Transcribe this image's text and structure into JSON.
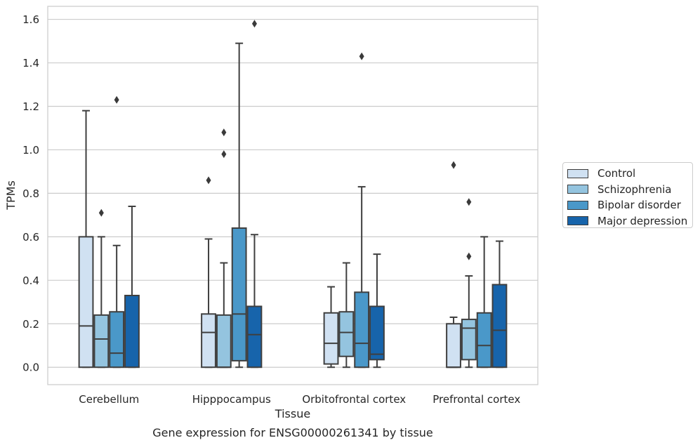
{
  "chart_data": {
    "type": "box",
    "title": "",
    "xlabel": "Tissue",
    "ylabel": "TPMs",
    "caption": "Gene expression for ENSG00000261341 by tissue",
    "categories": [
      "Cerebellum",
      "Hipppocampus",
      "Orbitofrontal cortex",
      "Prefrontal cortex"
    ],
    "ylim": [
      -0.08,
      1.66
    ],
    "yticks": [
      "0.0",
      "0.2",
      "0.4",
      "0.6",
      "0.8",
      "1.0",
      "1.2",
      "1.4",
      "1.6"
    ],
    "grid": "horizontal",
    "legend_position": "right",
    "series": [
      {
        "name": "Control",
        "color": "#d0e1f2",
        "boxes": [
          {
            "q1": 0.0,
            "median": 0.19,
            "q3": 0.6,
            "whisker_low": 0.0,
            "whisker_high": 1.18,
            "outliers": []
          },
          {
            "q1": 0.0,
            "median": 0.16,
            "q3": 0.245,
            "whisker_low": 0.0,
            "whisker_high": 0.59,
            "outliers": [
              0.86
            ]
          },
          {
            "q1": 0.015,
            "median": 0.11,
            "q3": 0.25,
            "whisker_low": 0.0,
            "whisker_high": 0.37,
            "outliers": []
          },
          {
            "q1": 0.0,
            "median": 0.0,
            "q3": 0.2,
            "whisker_low": 0.0,
            "whisker_high": 0.23,
            "outliers": [
              0.93
            ]
          }
        ]
      },
      {
        "name": "Schizophrenia",
        "color": "#94c4df",
        "boxes": [
          {
            "q1": 0.0,
            "median": 0.13,
            "q3": 0.24,
            "whisker_low": 0.0,
            "whisker_high": 0.6,
            "outliers": [
              0.71
            ]
          },
          {
            "q1": 0.0,
            "median": 0.0,
            "q3": 0.24,
            "whisker_low": 0.0,
            "whisker_high": 0.48,
            "outliers": [
              0.98,
              1.08
            ]
          },
          {
            "q1": 0.05,
            "median": 0.16,
            "q3": 0.255,
            "whisker_low": 0.0,
            "whisker_high": 0.48,
            "outliers": []
          },
          {
            "q1": 0.035,
            "median": 0.18,
            "q3": 0.22,
            "whisker_low": 0.0,
            "whisker_high": 0.42,
            "outliers": [
              0.51,
              0.76
            ]
          }
        ]
      },
      {
        "name": "Bipolar disorder",
        "color": "#4a98c9",
        "boxes": [
          {
            "q1": 0.0,
            "median": 0.065,
            "q3": 0.255,
            "whisker_low": 0.0,
            "whisker_high": 0.56,
            "outliers": [
              1.23
            ]
          },
          {
            "q1": 0.03,
            "median": 0.245,
            "q3": 0.64,
            "whisker_low": 0.0,
            "whisker_high": 1.49,
            "outliers": []
          },
          {
            "q1": 0.0,
            "median": 0.11,
            "q3": 0.345,
            "whisker_low": 0.0,
            "whisker_high": 0.83,
            "outliers": [
              1.43
            ]
          },
          {
            "q1": 0.0,
            "median": 0.1,
            "q3": 0.25,
            "whisker_low": 0.0,
            "whisker_high": 0.6,
            "outliers": []
          }
        ]
      },
      {
        "name": "Major depression",
        "color": "#1764ab",
        "boxes": [
          {
            "q1": 0.0,
            "median": 0.33,
            "q3": 0.33,
            "whisker_low": 0.0,
            "whisker_high": 0.74,
            "outliers": []
          },
          {
            "q1": 0.0,
            "median": 0.15,
            "q3": 0.28,
            "whisker_low": 0.0,
            "whisker_high": 0.61,
            "outliers": [
              1.58
            ]
          },
          {
            "q1": 0.035,
            "median": 0.06,
            "q3": 0.28,
            "whisker_low": 0.0,
            "whisker_high": 0.52,
            "outliers": []
          },
          {
            "q1": 0.0,
            "median": 0.17,
            "q3": 0.38,
            "whisker_low": 0.0,
            "whisker_high": 0.58,
            "outliers": []
          }
        ]
      }
    ]
  }
}
